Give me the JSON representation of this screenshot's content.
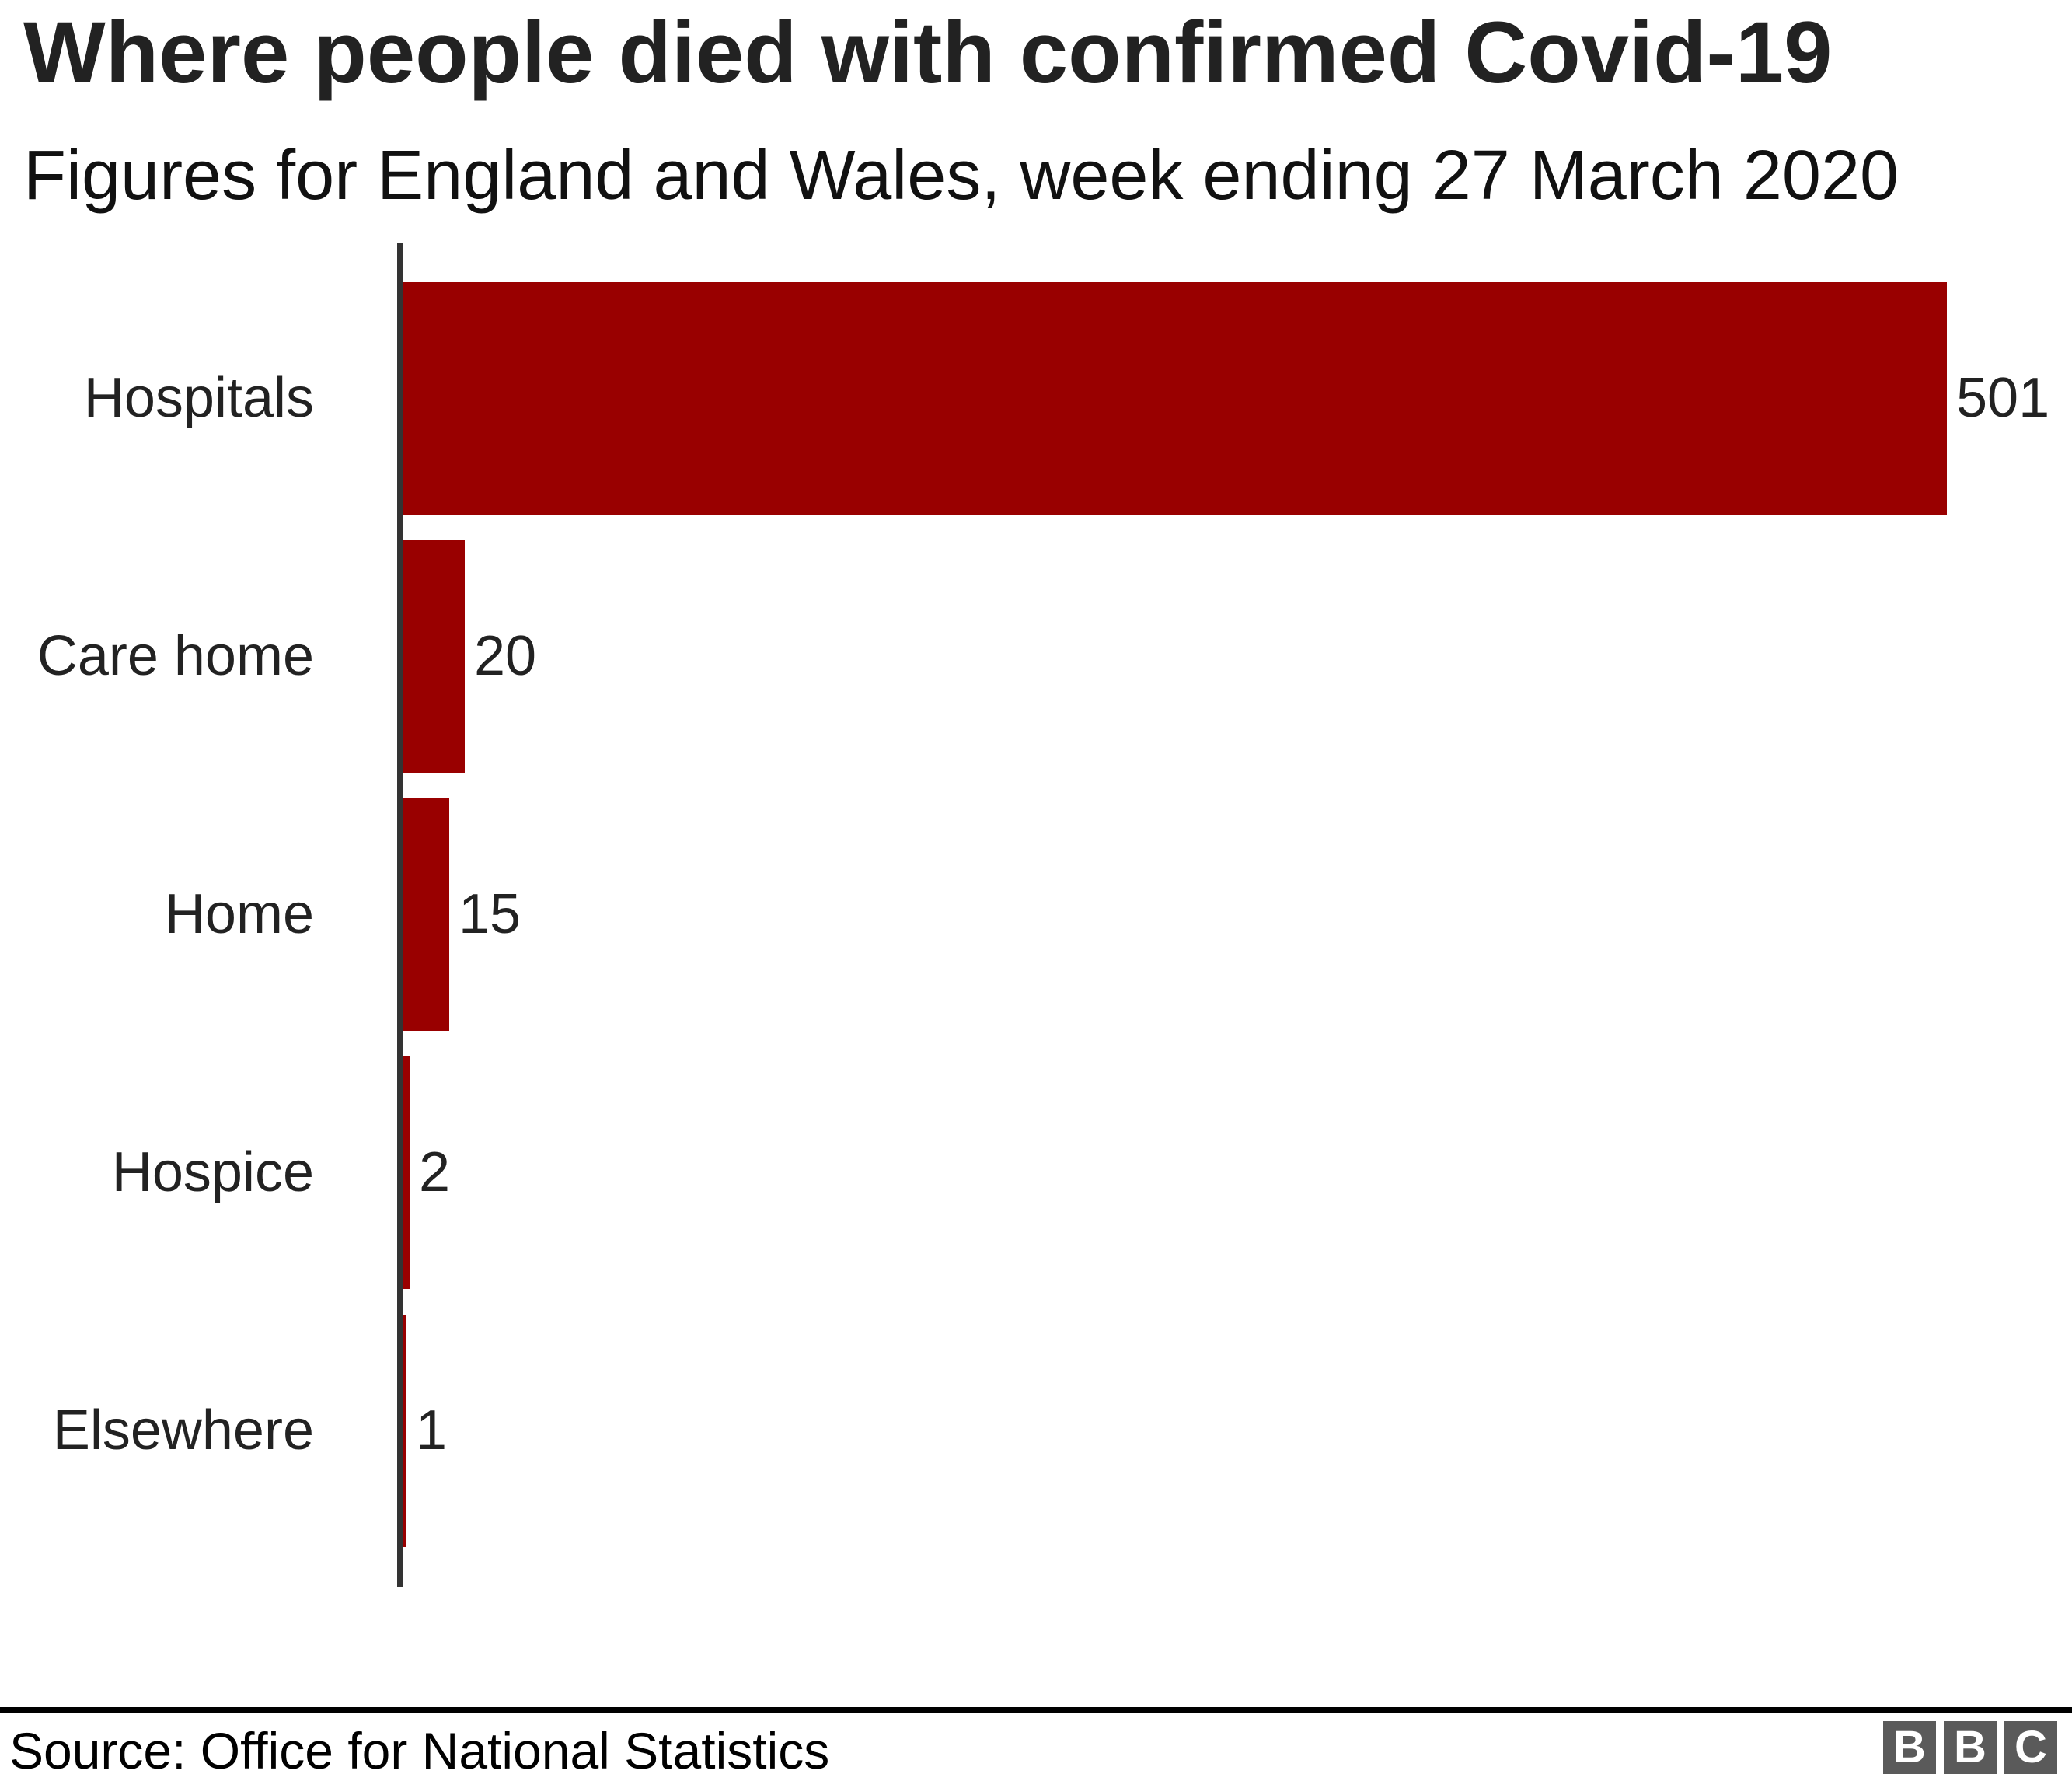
{
  "header": {
    "title": "Where people died with confirmed Covid-19",
    "subtitle": "Figures for England and Wales, week ending 27 March 2020"
  },
  "footer": {
    "source": "Source: Office for National Statistics",
    "bbc_logo_letters": [
      "B",
      "B",
      "C"
    ]
  },
  "colors": {
    "bar": "#990000",
    "axis": "#333333",
    "text": "#222222",
    "divider": "#000000",
    "logo_gray": "#5a5a5a"
  },
  "chart_data": {
    "type": "bar",
    "orientation": "horizontal",
    "title": "Where people died with confirmed Covid-19",
    "subtitle": "Figures for England and Wales, week ending 27 March 2020",
    "categories": [
      "Hospitals",
      "Care home",
      "Home",
      "Hospice",
      "Elsewhere"
    ],
    "values": [
      501,
      20,
      15,
      2,
      1
    ],
    "value_labels": [
      "501",
      "20",
      "15",
      "2",
      "1"
    ],
    "xlim": [
      0,
      501
    ],
    "grid": false,
    "legend": false,
    "value_labels_position": "end-of-bar",
    "source": "Office for National Statistics"
  }
}
